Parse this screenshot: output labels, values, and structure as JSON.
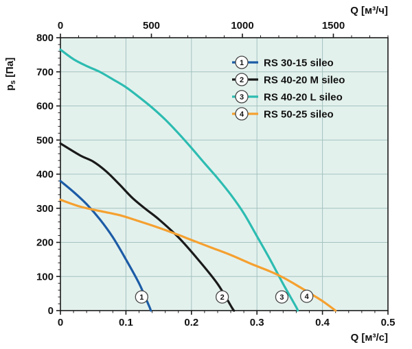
{
  "chart_data": {
    "type": "line",
    "title": "",
    "plot_bg_color": "#e3f1ed",
    "grid_color": "#a3c2be",
    "axis_color": "#1a1a1a",
    "legend_position": "top-right-inside",
    "y_axis": {
      "label_main": "p",
      "label_sub": "s",
      "label_unit": " [Па]",
      "min": 0,
      "max": 800,
      "ticks": [
        0,
        100,
        200,
        300,
        400,
        500,
        600,
        700,
        800
      ],
      "minor_step": 20
    },
    "x_axis_bottom": {
      "label": "Q [м³/с]",
      "min": 0,
      "max": 0.5,
      "ticks": [
        0,
        0.1,
        0.2,
        0.3,
        0.4,
        0.5
      ],
      "tick_labels": [
        "0",
        "0.1",
        "0.2",
        "0.3",
        "0.4",
        "0.5"
      ],
      "minor_step": 0.02
    },
    "x_axis_top": {
      "label": "Q [м³/ч]",
      "min": 0,
      "max": 1800,
      "ticks": [
        0,
        500,
        1000,
        1500
      ],
      "tick_labels": [
        "0",
        "500",
        "1000",
        "1500"
      ],
      "minor_step": 100
    },
    "series": [
      {
        "num": "1",
        "name": "RS 30-15 sileo",
        "color": "#1c5ca6",
        "points": [
          [
            0,
            380
          ],
          [
            0.02,
            348
          ],
          [
            0.04,
            312
          ],
          [
            0.06,
            268
          ],
          [
            0.08,
            215
          ],
          [
            0.1,
            150
          ],
          [
            0.12,
            80
          ],
          [
            0.135,
            15
          ],
          [
            0.138,
            0
          ]
        ],
        "marker_at": [
          0.124,
          40
        ]
      },
      {
        "num": "2",
        "name": "RS 40-20 M sileo",
        "color": "#1a1a1a",
        "points": [
          [
            0,
            490
          ],
          [
            0.03,
            455
          ],
          [
            0.05,
            437
          ],
          [
            0.07,
            408
          ],
          [
            0.09,
            370
          ],
          [
            0.11,
            330
          ],
          [
            0.13,
            298
          ],
          [
            0.15,
            268
          ],
          [
            0.18,
            215
          ],
          [
            0.21,
            150
          ],
          [
            0.24,
            78
          ],
          [
            0.262,
            8
          ],
          [
            0.265,
            0
          ]
        ],
        "marker_at": [
          0.247,
          40
        ]
      },
      {
        "num": "3",
        "name": "RS 40-20 L sileo",
        "color": "#2dbcb1",
        "points": [
          [
            0,
            765
          ],
          [
            0.02,
            737
          ],
          [
            0.04,
            717
          ],
          [
            0.06,
            700
          ],
          [
            0.08,
            678
          ],
          [
            0.1,
            655
          ],
          [
            0.12,
            626
          ],
          [
            0.14,
            595
          ],
          [
            0.16,
            560
          ],
          [
            0.18,
            520
          ],
          [
            0.2,
            477
          ],
          [
            0.22,
            432
          ],
          [
            0.24,
            388
          ],
          [
            0.26,
            340
          ],
          [
            0.28,
            285
          ],
          [
            0.3,
            218
          ],
          [
            0.32,
            150
          ],
          [
            0.34,
            78
          ],
          [
            0.36,
            10
          ],
          [
            0.362,
            0
          ]
        ],
        "marker_at": [
          0.338,
          40
        ]
      },
      {
        "num": "4",
        "name": "RS 50-25 sileo",
        "color": "#f5a02f",
        "points": [
          [
            0,
            325
          ],
          [
            0.03,
            305
          ],
          [
            0.06,
            292
          ],
          [
            0.09,
            280
          ],
          [
            0.12,
            262
          ],
          [
            0.15,
            243
          ],
          [
            0.18,
            222
          ],
          [
            0.2,
            207
          ],
          [
            0.23,
            185
          ],
          [
            0.26,
            163
          ],
          [
            0.29,
            138
          ],
          [
            0.32,
            115
          ],
          [
            0.34,
            97
          ],
          [
            0.36,
            75
          ],
          [
            0.38,
            52
          ],
          [
            0.4,
            28
          ],
          [
            0.42,
            0
          ]
        ],
        "marker_at": [
          0.376,
          42
        ]
      }
    ]
  }
}
